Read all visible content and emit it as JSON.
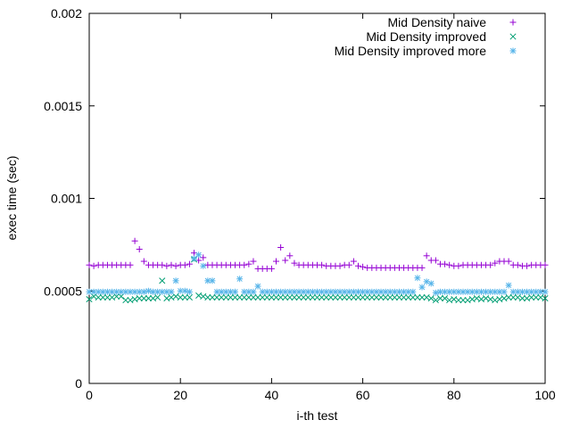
{
  "chart_data": {
    "type": "scatter",
    "xlabel": "i-th test",
    "ylabel": "exec time (sec)",
    "xlim": [
      0,
      100
    ],
    "ylim": [
      0,
      0.002
    ],
    "x_ticks": [
      0,
      20,
      40,
      60,
      80,
      100
    ],
    "x_tick_labels": [
      "0",
      "20",
      "40",
      "60",
      "80",
      "100"
    ],
    "y_ticks": [
      0,
      0.0005,
      0.001,
      0.0015,
      0.002
    ],
    "y_tick_labels": [
      "0",
      "0.0005",
      "0.001",
      "0.0015",
      "0.002"
    ],
    "grid": false,
    "legend_position": "top-right",
    "series": [
      {
        "name": "Mid Density naive",
        "marker": "plus",
        "color": "#9400d3",
        "x": [
          0,
          1,
          2,
          3,
          4,
          5,
          6,
          7,
          8,
          9,
          10,
          11,
          12,
          13,
          14,
          15,
          16,
          17,
          18,
          19,
          20,
          21,
          22,
          23,
          24,
          25,
          26,
          27,
          28,
          29,
          30,
          31,
          32,
          33,
          34,
          35,
          36,
          37,
          38,
          39,
          40,
          41,
          42,
          43,
          44,
          45,
          46,
          47,
          48,
          49,
          50,
          51,
          52,
          53,
          54,
          55,
          56,
          57,
          58,
          59,
          60,
          61,
          62,
          63,
          64,
          65,
          66,
          67,
          68,
          69,
          70,
          71,
          72,
          73,
          74,
          75,
          76,
          77,
          78,
          79,
          80,
          81,
          82,
          83,
          84,
          85,
          86,
          87,
          88,
          89,
          90,
          91,
          92,
          93,
          94,
          95,
          96,
          97,
          98,
          99,
          100
        ],
        "y": [
          0.00064,
          0.000635,
          0.00064,
          0.00064,
          0.00064,
          0.00064,
          0.00064,
          0.00064,
          0.00064,
          0.00064,
          0.00077,
          0.000725,
          0.00066,
          0.00064,
          0.00064,
          0.00064,
          0.00064,
          0.000635,
          0.00064,
          0.000635,
          0.00064,
          0.00064,
          0.000645,
          0.000705,
          0.000665,
          0.00068,
          0.00064,
          0.00064,
          0.00064,
          0.00064,
          0.00064,
          0.00064,
          0.00064,
          0.00064,
          0.00064,
          0.000645,
          0.00066,
          0.00062,
          0.00062,
          0.00062,
          0.00062,
          0.00066,
          0.000735,
          0.000665,
          0.00069,
          0.00065,
          0.00064,
          0.00064,
          0.00064,
          0.00064,
          0.00064,
          0.00064,
          0.000635,
          0.000635,
          0.000635,
          0.000635,
          0.00064,
          0.00064,
          0.00066,
          0.000635,
          0.00063,
          0.000625,
          0.000625,
          0.000625,
          0.000625,
          0.000625,
          0.000625,
          0.000625,
          0.000625,
          0.000625,
          0.000625,
          0.000625,
          0.000625,
          0.000625,
          0.00069,
          0.000665,
          0.000665,
          0.000645,
          0.000645,
          0.00064,
          0.000635,
          0.000635,
          0.00064,
          0.00064,
          0.00064,
          0.00064,
          0.00064,
          0.00064,
          0.00064,
          0.00065,
          0.00066,
          0.00066,
          0.00066,
          0.00064,
          0.00064,
          0.000635,
          0.000635,
          0.00064,
          0.00064,
          0.00064,
          0.00064
        ]
      },
      {
        "name": "Mid Density improved",
        "marker": "x",
        "color": "#009e73",
        "x": [
          0,
          1,
          2,
          3,
          4,
          5,
          6,
          7,
          8,
          9,
          10,
          11,
          12,
          13,
          14,
          15,
          16,
          17,
          18,
          19,
          20,
          21,
          22,
          23,
          24,
          25,
          26,
          27,
          28,
          29,
          30,
          31,
          32,
          33,
          34,
          35,
          36,
          37,
          38,
          39,
          40,
          41,
          42,
          43,
          44,
          45,
          46,
          47,
          48,
          49,
          50,
          51,
          52,
          53,
          54,
          55,
          56,
          57,
          58,
          59,
          60,
          61,
          62,
          63,
          64,
          65,
          66,
          67,
          68,
          69,
          70,
          71,
          72,
          73,
          74,
          75,
          76,
          77,
          78,
          79,
          80,
          81,
          82,
          83,
          84,
          85,
          86,
          87,
          88,
          89,
          90,
          91,
          92,
          93,
          94,
          95,
          96,
          97,
          98,
          99,
          100
        ],
        "y": [
          0.000455,
          0.00047,
          0.000465,
          0.000465,
          0.000465,
          0.000465,
          0.00047,
          0.00047,
          0.00045,
          0.00045,
          0.000455,
          0.00046,
          0.00046,
          0.00046,
          0.00046,
          0.000465,
          0.000555,
          0.00046,
          0.000465,
          0.00047,
          0.000465,
          0.000465,
          0.000465,
          0.00067,
          0.000475,
          0.00047,
          0.000465,
          0.000465,
          0.000465,
          0.000465,
          0.000465,
          0.000465,
          0.000465,
          0.000465,
          0.000465,
          0.000465,
          0.000465,
          0.000465,
          0.000465,
          0.000465,
          0.000465,
          0.000465,
          0.000465,
          0.000465,
          0.000465,
          0.000465,
          0.000465,
          0.000465,
          0.000465,
          0.000465,
          0.000465,
          0.000465,
          0.000465,
          0.000465,
          0.000465,
          0.000465,
          0.000465,
          0.000465,
          0.000465,
          0.000465,
          0.000465,
          0.000465,
          0.000465,
          0.000465,
          0.000465,
          0.000465,
          0.000465,
          0.000465,
          0.000465,
          0.000465,
          0.000465,
          0.000465,
          0.000465,
          0.000465,
          0.000465,
          0.00046,
          0.00045,
          0.00046,
          0.00046,
          0.00045,
          0.000455,
          0.00045,
          0.00045,
          0.00045,
          0.000455,
          0.00046,
          0.000455,
          0.00046,
          0.000455,
          0.00045,
          0.000455,
          0.00046,
          0.000465,
          0.000465,
          0.000465,
          0.00046,
          0.00046,
          0.000465,
          0.000465,
          0.000465,
          0.00046
        ]
      },
      {
        "name": "Mid Density improved more",
        "marker": "star",
        "color": "#56b4e9",
        "x": [
          0,
          1,
          2,
          3,
          4,
          5,
          6,
          7,
          8,
          9,
          10,
          11,
          12,
          13,
          14,
          15,
          16,
          17,
          18,
          19,
          20,
          21,
          22,
          23,
          24,
          25,
          26,
          27,
          28,
          29,
          30,
          31,
          32,
          33,
          34,
          35,
          36,
          37,
          38,
          39,
          40,
          41,
          42,
          43,
          44,
          45,
          46,
          47,
          48,
          49,
          50,
          51,
          52,
          53,
          54,
          55,
          56,
          57,
          58,
          59,
          60,
          61,
          62,
          63,
          64,
          65,
          66,
          67,
          68,
          69,
          70,
          71,
          72,
          73,
          74,
          75,
          76,
          77,
          78,
          79,
          80,
          81,
          82,
          83,
          84,
          85,
          86,
          87,
          88,
          89,
          90,
          91,
          92,
          93,
          94,
          95,
          96,
          97,
          98,
          99,
          100
        ],
        "y": [
          0.000495,
          0.000495,
          0.000495,
          0.000495,
          0.000495,
          0.000495,
          0.000495,
          0.000495,
          0.000495,
          0.000495,
          0.000495,
          0.000495,
          0.000495,
          0.0005,
          0.000495,
          0.000495,
          0.000495,
          0.000495,
          0.000495,
          0.000555,
          0.0005,
          0.0005,
          0.000495,
          0.000675,
          0.000695,
          0.000635,
          0.000555,
          0.000555,
          0.000495,
          0.000495,
          0.000495,
          0.000495,
          0.000495,
          0.000565,
          0.000495,
          0.000495,
          0.000495,
          0.000525,
          0.000495,
          0.000495,
          0.000495,
          0.000495,
          0.000495,
          0.000495,
          0.000495,
          0.000495,
          0.000495,
          0.000495,
          0.000495,
          0.000495,
          0.000495,
          0.000495,
          0.000495,
          0.000495,
          0.000495,
          0.000495,
          0.000495,
          0.000495,
          0.000495,
          0.000495,
          0.000495,
          0.000495,
          0.000495,
          0.000495,
          0.000495,
          0.000495,
          0.000495,
          0.000495,
          0.000495,
          0.000495,
          0.000495,
          0.000495,
          0.00057,
          0.00052,
          0.00055,
          0.00054,
          0.00049,
          0.000495,
          0.000495,
          0.000495,
          0.000495,
          0.000495,
          0.000495,
          0.000495,
          0.000495,
          0.000495,
          0.000495,
          0.000495,
          0.000495,
          0.000495,
          0.000495,
          0.000495,
          0.00053,
          0.000495,
          0.000495,
          0.000495,
          0.000495,
          0.000495,
          0.000495,
          0.000495,
          0.000495
        ]
      }
    ]
  }
}
